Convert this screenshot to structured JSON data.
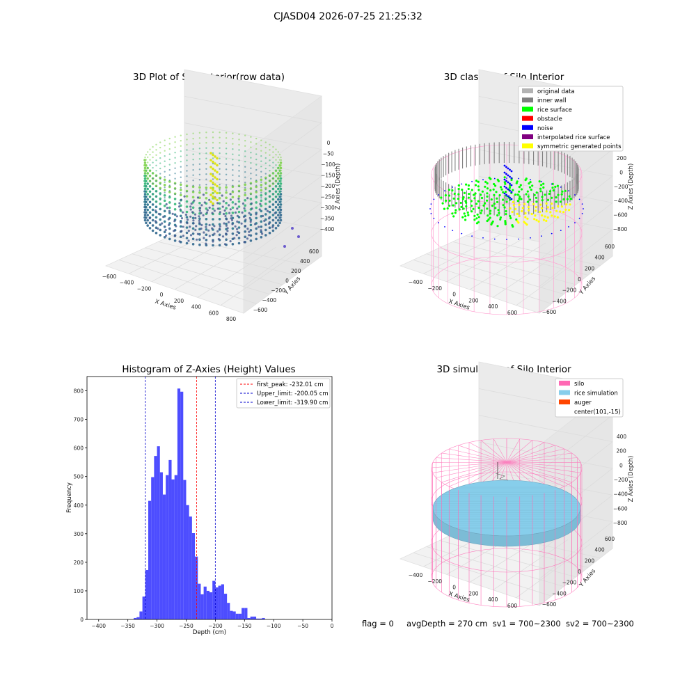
{
  "suptitle": "CJASD04 2026-07-25 21:25:32",
  "panels": {
    "raw": {
      "title": "3D Plot of Silo Interior(row data)",
      "xlabel": "X Axies",
      "ylabel": "Y Axies",
      "zlabel": "Z Axies (Depth)",
      "xticks": [
        "−600",
        "−400",
        "−200",
        "0",
        "200",
        "400",
        "600",
        "800"
      ],
      "yticks": [
        "−600",
        "−400",
        "−200",
        "0",
        "200",
        "400",
        "600"
      ],
      "zticks": [
        "0",
        "−50",
        "−100",
        "−150",
        "−200",
        "−250",
        "−300",
        "−350",
        "−400"
      ]
    },
    "classify": {
      "title": "3D classify of Silo Interior",
      "xlabel": "X Axies",
      "ylabel": "Y Axies",
      "zlabel": "Z Axies (Depth)",
      "xticks": [
        "−400",
        "−200",
        "0",
        "200",
        "400",
        "600"
      ],
      "yticks": [
        "−600",
        "−400",
        "−200",
        "0",
        "200",
        "400",
        "600"
      ],
      "zticks": [
        "200",
        "0",
        "−200",
        "−400",
        "−600",
        "−800"
      ],
      "legend": [
        {
          "label": "original data",
          "color": "#b3b3b3"
        },
        {
          "label": "inner wall",
          "color": "#808080"
        },
        {
          "label": "rice surface",
          "color": "#00ff00"
        },
        {
          "label": "obstacle",
          "color": "#ff0000"
        },
        {
          "label": "noise",
          "color": "#0000ff"
        },
        {
          "label": "interpolated rice surface",
          "color": "#800080"
        },
        {
          "label": "symmetric generated points",
          "color": "#ffff00"
        }
      ]
    },
    "simulation": {
      "title": "3D simulation of Silo Interior",
      "xlabel": "X Axies",
      "ylabel": "Y Axies",
      "zlabel": "Z Axies (Depth)",
      "xticks": [
        "−400",
        "−200",
        "0",
        "200",
        "400",
        "600"
      ],
      "yticks": [
        "−600",
        "−400",
        "−200",
        "0",
        "200",
        "400",
        "600"
      ],
      "zticks": [
        "400",
        "200",
        "0",
        "−200",
        "−400",
        "−600",
        "−800"
      ],
      "legend": [
        {
          "label": "silo",
          "color": "#ff69b4"
        },
        {
          "label": "rice simulation",
          "color": "#87ceeb"
        },
        {
          "label": "auger",
          "color": "#ff4500"
        },
        {
          "label": "center(101,-15)",
          "color": ""
        }
      ]
    }
  },
  "footer": {
    "flag": "flag = 0",
    "avg": "avgDepth = 270 cm",
    "sv1": "sv1 = 700~2300",
    "sv2": "sv2 = 700~2300"
  },
  "colors": {
    "hist_bar": "#4d4dff",
    "first_peak": "#ff0000",
    "limit": "#0000cc",
    "silo": "#ff69b4",
    "rice": "#87ceeb",
    "rice_surface": "#00ff00"
  },
  "chart_data": [
    {
      "type": "bar",
      "title": "Histogram of Z-Axies (Height) Values",
      "xlabel": "Depth (cm)",
      "ylabel": "Frequency",
      "xlim": [
        -420,
        0
      ],
      "ylim": [
        0,
        850
      ],
      "xticks": [
        -400,
        -350,
        -300,
        -250,
        -200,
        -150,
        -100,
        -50,
        0
      ],
      "yticks": [
        0,
        100,
        200,
        300,
        400,
        500,
        600,
        700,
        800
      ],
      "bin_width": 5,
      "bins": [
        [
          -340,
          5
        ],
        [
          -335,
          8
        ],
        [
          -330,
          28
        ],
        [
          -325,
          80
        ],
        [
          -320,
          173
        ],
        [
          -315,
          415
        ],
        [
          -310,
          498
        ],
        [
          -305,
          572
        ],
        [
          -300,
          606
        ],
        [
          -295,
          515
        ],
        [
          -290,
          437
        ],
        [
          -285,
          505
        ],
        [
          -280,
          558
        ],
        [
          -275,
          490
        ],
        [
          -270,
          505
        ],
        [
          -265,
          808
        ],
        [
          -260,
          797
        ],
        [
          -255,
          488
        ],
        [
          -250,
          400
        ],
        [
          -245,
          360
        ],
        [
          -240,
          302
        ],
        [
          -235,
          220
        ],
        [
          -230,
          125
        ],
        [
          -225,
          88
        ],
        [
          -220,
          115
        ],
        [
          -215,
          100
        ],
        [
          -210,
          95
        ],
        [
          -205,
          135
        ],
        [
          -200,
          112
        ],
        [
          -195,
          118
        ],
        [
          -190,
          123
        ],
        [
          -185,
          90
        ],
        [
          -180,
          58
        ],
        [
          -175,
          30
        ],
        [
          -170,
          28
        ],
        [
          -165,
          20
        ],
        [
          -160,
          20
        ],
        [
          -155,
          40
        ],
        [
          -150,
          40
        ],
        [
          -145,
          5
        ],
        [
          -140,
          10
        ],
        [
          -135,
          10
        ],
        [
          -130,
          3
        ],
        [
          -125,
          3
        ],
        [
          -120,
          5
        ]
      ],
      "vlines": [
        {
          "label": "first_peak: -232.01 cm",
          "x": -232.01,
          "color": "#ff0000"
        },
        {
          "label": "Upper_limit: -200.05 cm",
          "x": -200.05,
          "color": "#0000cc"
        },
        {
          "label": "Lower_limit: -319.90 cm",
          "x": -319.9,
          "color": "#0000cc"
        }
      ]
    }
  ]
}
